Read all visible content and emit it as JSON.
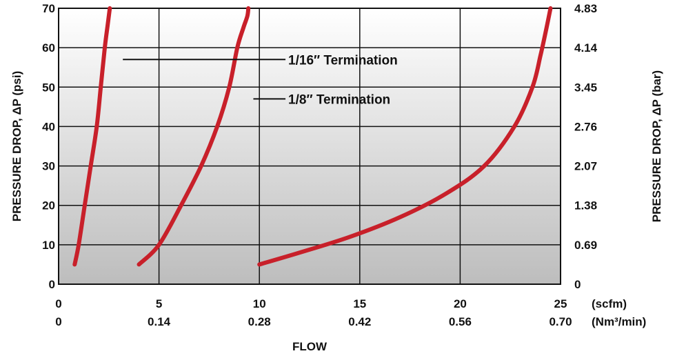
{
  "chart_data": {
    "type": "line",
    "xlabel": "FLOW",
    "x_unit_primary": "(scfm)",
    "x_unit_secondary": "(Nm³/min)",
    "ylabel_left": "PRESSURE DROP, ΔP (psi)",
    "ylabel_right": "PRESSURE DROP, ΔP (bar)",
    "xlim": [
      0,
      25
    ],
    "ylim": [
      0,
      70
    ],
    "x_ticks": [
      0,
      5,
      10,
      15,
      20,
      25
    ],
    "x_tick_labels_primary": [
      "0",
      "5",
      "10",
      "15",
      "20",
      "25"
    ],
    "x_tick_labels_secondary": [
      "0",
      "0.14",
      "0.28",
      "0.42",
      "0.56",
      "0.70"
    ],
    "y_ticks": [
      0,
      10,
      20,
      30,
      40,
      50,
      60,
      70
    ],
    "y_tick_labels_left": [
      "0",
      "10",
      "20",
      "30",
      "40",
      "50",
      "60",
      "70"
    ],
    "y_tick_labels_right": [
      "0",
      "0.69",
      "1.38",
      "2.07",
      "2.76",
      "3.45",
      "4.14",
      "4.83"
    ],
    "grid": true,
    "series_color": "#c8202a",
    "series": [
      {
        "x": [
          0.8,
          1.0,
          1.3,
          1.6,
          1.9,
          2.1,
          2.3,
          2.45,
          2.55
        ],
        "y": [
          5,
          10,
          20,
          30,
          40,
          50,
          60,
          66,
          70
        ]
      },
      {
        "x": [
          4.0,
          5.0,
          6.1,
          7.1,
          7.9,
          8.5,
          8.9,
          9.2,
          9.4,
          9.45
        ],
        "y": [
          5,
          10,
          20,
          30,
          40,
          50,
          60,
          65,
          68,
          70
        ]
      },
      {
        "x": [
          10.0,
          12.0,
          14.5,
          17.0,
          19.3,
          21.2,
          22.7,
          23.6,
          24.0,
          24.3,
          24.5
        ],
        "y": [
          5,
          8,
          12,
          17,
          23,
          30,
          40,
          50,
          58,
          65,
          70
        ]
      }
    ],
    "annotations": [
      {
        "text": "1/16″ Termination",
        "line_from_x": 3.2,
        "line_to_x": 11.3,
        "y": 57
      },
      {
        "text": "1/8″ Termination",
        "line_from_x": 9.7,
        "line_to_x": 11.3,
        "y": 47
      }
    ]
  }
}
